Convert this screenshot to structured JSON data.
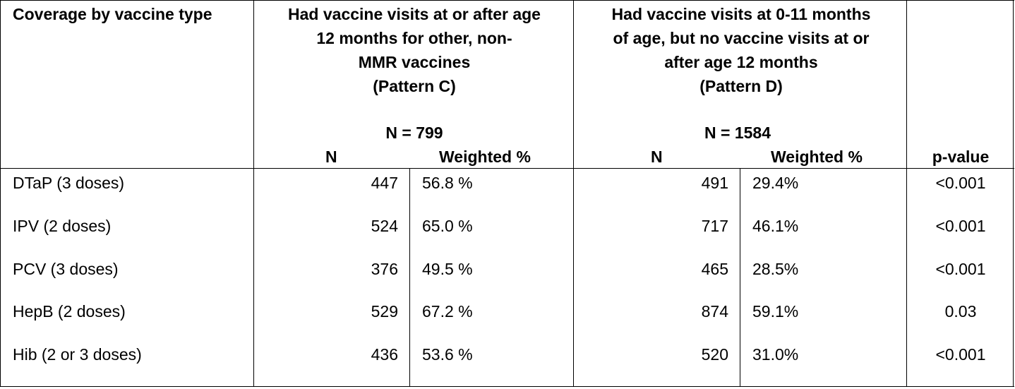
{
  "table": {
    "col1_header": "Coverage by vaccine type",
    "groupC": {
      "title_lines": [
        "Had vaccine visits at or after age",
        "12 months for other, non-",
        "MMR vaccines",
        "(Pattern C)"
      ],
      "n_total": "N = 799",
      "n_label": "N",
      "pct_label": "Weighted %"
    },
    "groupD": {
      "title_lines": [
        "Had vaccine visits at 0-11 months",
        "of age, but no vaccine visits at or",
        "after age 12 months",
        "(Pattern D)"
      ],
      "n_total": "N = 1584",
      "n_label": "N",
      "pct_label": "Weighted %"
    },
    "pvalue_label": "p-value",
    "rows": [
      {
        "label": "DTaP (3 doses)",
        "c_n": "447",
        "c_pct": "56.8 %",
        "d_n": "491",
        "d_pct": "29.4%",
        "p": "<0.001"
      },
      {
        "label": "IPV (2 doses)",
        "c_n": "524",
        "c_pct": "65.0 %",
        "d_n": "717",
        "d_pct": "46.1%",
        "p": "<0.001"
      },
      {
        "label": "PCV (3 doses)",
        "c_n": "376",
        "c_pct": "49.5 %",
        "d_n": "465",
        "d_pct": "28.5%",
        "p": "<0.001"
      },
      {
        "label": "HepB (2 doses)",
        "c_n": "529",
        "c_pct": "67.2 %",
        "d_n": "874",
        "d_pct": "59.1%",
        "p": "0.03"
      },
      {
        "label": "Hib (2 or 3 doses)",
        "c_n": "436",
        "c_pct": "53.6 %",
        "d_n": "520",
        "d_pct": "31.0%",
        "p": "<0.001"
      }
    ]
  }
}
